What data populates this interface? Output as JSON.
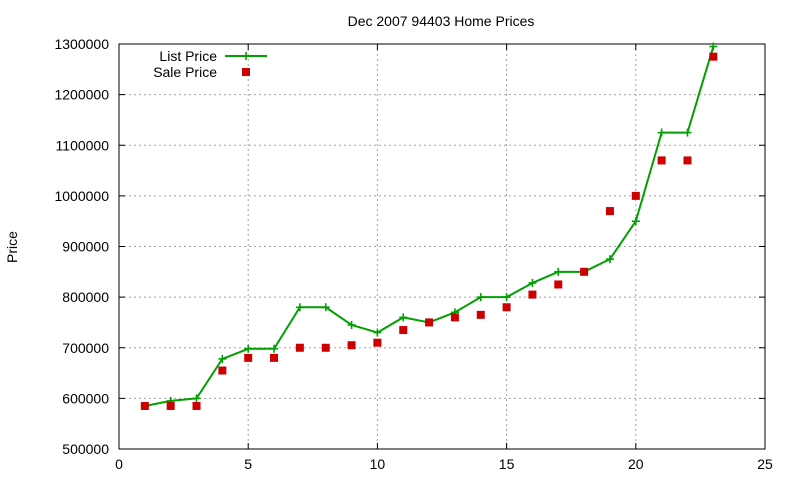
{
  "chart_data": {
    "type": "line",
    "title": "Dec 2007 94403 Home Prices",
    "xlabel": "",
    "ylabel": "Price",
    "xlim": [
      0,
      25
    ],
    "ylim": [
      500000,
      1300000
    ],
    "xticks": [
      0,
      5,
      10,
      15,
      20,
      25
    ],
    "yticks": [
      500000,
      600000,
      700000,
      800000,
      900000,
      1000000,
      1100000,
      1200000,
      1300000
    ],
    "grid": true,
    "legend_position": "top-left",
    "series": [
      {
        "name": "List Price",
        "style": "line-with-plus-markers",
        "color": "#00a000",
        "x": [
          1,
          2,
          3,
          4,
          5,
          6,
          7,
          8,
          9,
          10,
          11,
          12,
          13,
          14,
          15,
          16,
          17,
          18,
          19,
          20,
          21,
          22,
          23
        ],
        "y": [
          585000,
          595000,
          600000,
          678000,
          698000,
          698000,
          780000,
          780000,
          745000,
          730000,
          760000,
          750000,
          770000,
          800000,
          800000,
          828000,
          850000,
          850000,
          875000,
          950000,
          1125000,
          1125000,
          1295000
        ]
      },
      {
        "name": "Sale Price",
        "style": "square-markers",
        "color": "#cc0000",
        "x": [
          1,
          2,
          3,
          4,
          5,
          6,
          7,
          8,
          9,
          10,
          11,
          12,
          13,
          14,
          15,
          16,
          17,
          18,
          19,
          20,
          21,
          22,
          23
        ],
        "y": [
          585000,
          585000,
          585000,
          655000,
          680000,
          680000,
          700000,
          700000,
          705000,
          710000,
          735000,
          750000,
          760000,
          765000,
          780000,
          805000,
          825000,
          850000,
          970000,
          1000000,
          1070000,
          1070000,
          1275000
        ]
      }
    ]
  }
}
